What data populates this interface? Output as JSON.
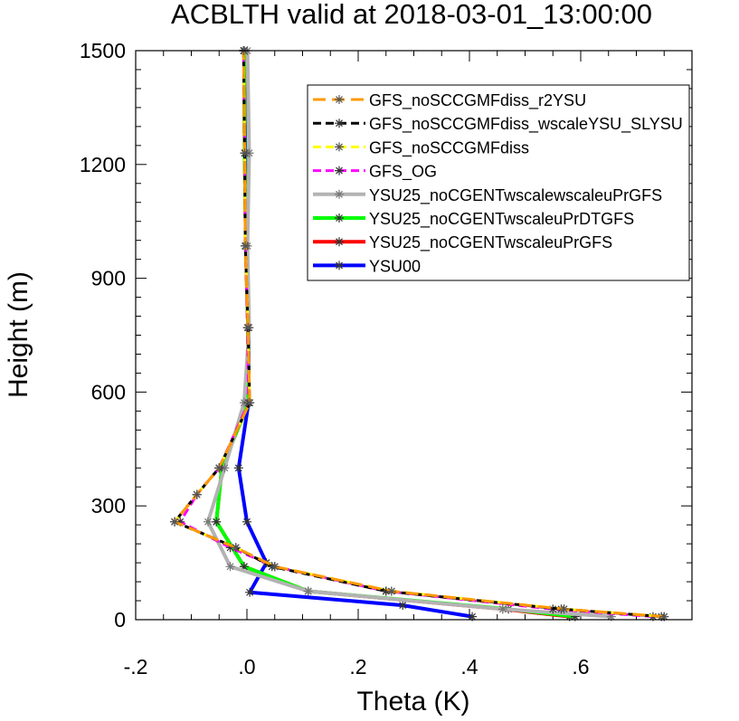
{
  "chart_data": {
    "type": "line",
    "title": "ACBLTH valid at 2018-03-01_13:00:00",
    "xlabel": "Theta (K)",
    "ylabel": "Height (m)",
    "xlim": [
      -0.2,
      0.8
    ],
    "ylim": [
      0,
      1500
    ],
    "xticks": [
      -0.2,
      0.0,
      0.2,
      0.4,
      0.6
    ],
    "xtick_labels": [
      "-.2",
      ".0",
      ".2",
      ".4",
      ".6"
    ],
    "yticks": [
      0,
      300,
      600,
      900,
      1200,
      1500
    ],
    "ytick_labels": [
      "0",
      "300",
      "600",
      "900",
      "1200",
      "1500"
    ],
    "legend_position": "top-right",
    "series": [
      {
        "name": "GFS_noSCCGMFdiss_r2YSU",
        "color": "#ff9900",
        "dash": "long-dash",
        "marker": "asterisk",
        "points": [
          [
            0.75,
            8
          ],
          [
            0.57,
            28
          ],
          [
            0.26,
            75
          ],
          [
            0.05,
            140
          ],
          [
            -0.02,
            190
          ],
          [
            -0.13,
            258
          ],
          [
            -0.09,
            330
          ],
          [
            -0.05,
            400
          ],
          [
            0.005,
            572
          ],
          [
            0.002,
            770
          ],
          [
            -0.003,
            985
          ],
          [
            -0.004,
            1230
          ],
          [
            -0.006,
            1500
          ]
        ]
      },
      {
        "name": "GFS_noSCCGMFdiss_wscaleYSU_SLYSU",
        "color": "#000000",
        "dash": "dash",
        "marker": "asterisk",
        "points": [
          [
            0.745,
            8
          ],
          [
            0.565,
            28
          ],
          [
            0.25,
            75
          ],
          [
            0.045,
            140
          ],
          [
            -0.02,
            190
          ],
          [
            -0.13,
            258
          ],
          [
            -0.09,
            330
          ],
          [
            -0.05,
            400
          ],
          [
            0.005,
            572
          ],
          [
            0.002,
            770
          ],
          [
            -0.003,
            985
          ],
          [
            -0.004,
            1230
          ],
          [
            -0.006,
            1500
          ]
        ]
      },
      {
        "name": "GFS_noSCCGMFdiss",
        "color": "#ffff00",
        "dash": "dash",
        "marker": "asterisk",
        "points": [
          [
            0.75,
            8
          ],
          [
            0.57,
            28
          ],
          [
            0.26,
            75
          ],
          [
            0.05,
            140
          ],
          [
            -0.02,
            190
          ],
          [
            -0.13,
            258
          ],
          [
            -0.09,
            330
          ],
          [
            -0.05,
            400
          ],
          [
            0.005,
            572
          ],
          [
            0.002,
            770
          ],
          [
            -0.003,
            985
          ],
          [
            -0.004,
            1230
          ],
          [
            -0.006,
            1500
          ]
        ]
      },
      {
        "name": "GFS_OG",
        "color": "#ff00ff",
        "dash": "dash",
        "marker": "asterisk",
        "points": [
          [
            0.73,
            8
          ],
          [
            0.55,
            28
          ],
          [
            0.25,
            75
          ],
          [
            0.05,
            140
          ],
          [
            -0.03,
            190
          ],
          [
            -0.12,
            258
          ],
          [
            -0.09,
            330
          ],
          [
            -0.05,
            400
          ],
          [
            0.003,
            572
          ],
          [
            0.001,
            770
          ],
          [
            -0.003,
            985
          ],
          [
            -0.004,
            1230
          ],
          [
            -0.006,
            1500
          ]
        ]
      },
      {
        "name": "YSU25_noCGENTwscalewscaleuPrGFS",
        "color": "#b3b3b3",
        "dash": "solid",
        "marker": "asterisk",
        "points": [
          [
            0.655,
            8
          ],
          [
            0.46,
            28
          ],
          [
            0.11,
            75
          ],
          [
            -0.03,
            140
          ],
          [
            -0.07,
            258
          ],
          [
            -0.04,
            400
          ],
          [
            -0.005,
            572
          ],
          [
            0.004,
            770
          ],
          [
            0.001,
            985
          ],
          [
            0.004,
            1230
          ],
          [
            0.001,
            1500
          ]
        ]
      },
      {
        "name": "YSU25_noCGENTwscaleuPrDTGFS",
        "color": "#00ff00",
        "dash": "solid",
        "marker": "asterisk",
        "points": [
          [
            0.59,
            8
          ],
          [
            0.47,
            28
          ],
          [
            0.11,
            75
          ],
          [
            -0.005,
            140
          ],
          [
            -0.055,
            258
          ],
          [
            -0.045,
            400
          ],
          [
            0.003,
            572
          ],
          [
            0.002,
            770
          ],
          [
            -0.002,
            985
          ],
          [
            -0.004,
            1230
          ],
          [
            -0.005,
            1500
          ]
        ]
      },
      {
        "name": "YSU25_noCGENTwscaleuPrGFS",
        "color": "#ff0000",
        "dash": "solid",
        "marker": "asterisk",
        "points": [
          [
            0.58,
            8
          ],
          [
            0.46,
            28
          ],
          [
            0.11,
            75
          ],
          [
            -0.005,
            140
          ],
          [
            -0.055,
            258
          ],
          [
            -0.045,
            400
          ],
          [
            0.003,
            572
          ],
          [
            0.002,
            770
          ],
          [
            -0.002,
            985
          ],
          [
            -0.004,
            1230
          ],
          [
            -0.005,
            1500
          ]
        ]
      },
      {
        "name": "YSU00",
        "color": "#0000ff",
        "dash": "solid",
        "marker": "asterisk",
        "points": [
          [
            0.405,
            8
          ],
          [
            0.28,
            38
          ],
          [
            0.005,
            72
          ],
          [
            0.035,
            150
          ],
          [
            0.0,
            258
          ],
          [
            -0.015,
            400
          ],
          [
            0.003,
            572
          ],
          [
            0.003,
            770
          ],
          [
            -0.002,
            985
          ],
          [
            -0.003,
            1230
          ],
          [
            -0.005,
            1500
          ]
        ]
      }
    ]
  }
}
